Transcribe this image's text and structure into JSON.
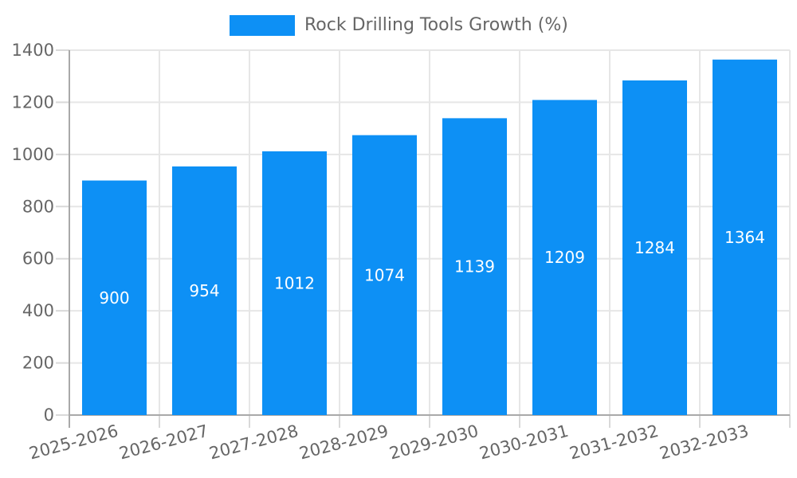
{
  "chart_data": {
    "type": "bar",
    "series_name": "Rock Drilling Tools Growth (%)",
    "categories": [
      "2025-2026",
      "2026-2027",
      "2027-2028",
      "2028-2029",
      "2029-2030",
      "2030-2031",
      "2031-2032",
      "2032-2033"
    ],
    "values": [
      900,
      954,
      1012,
      1074,
      1139,
      1209,
      1284,
      1364
    ],
    "value_labels": [
      "900",
      "954",
      "1012",
      "1074",
      "1139",
      "1209",
      "1284",
      "1364"
    ],
    "ylim": [
      0,
      1400
    ],
    "ytick_interval": 200,
    "yticks": [
      0,
      200,
      400,
      600,
      800,
      1000,
      1200,
      1400
    ],
    "xlabel": "",
    "ylabel": "",
    "grid": true,
    "legend_position": "top-center",
    "colors": {
      "bar": "#0d90f5",
      "value_label_text": "#ffffff",
      "axis_text": "#666666",
      "gridline": "#e6e6e6",
      "tick_line": "#d9d9d9",
      "axis_line": "#a9a9a9",
      "background": "#ffffff"
    }
  }
}
